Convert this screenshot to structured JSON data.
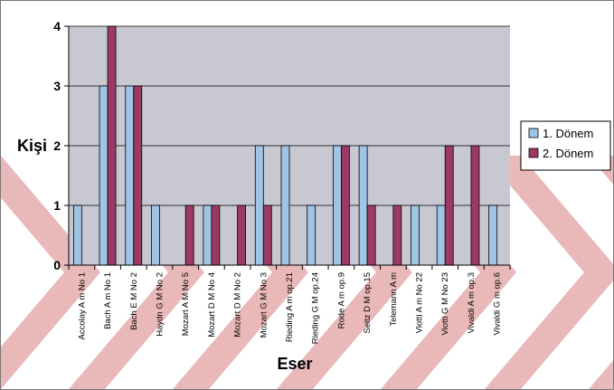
{
  "chart_data": {
    "type": "bar",
    "title": "",
    "xlabel": "Eser",
    "ylabel": "Kişi",
    "ylim": [
      0,
      4
    ],
    "yticks": [
      "0",
      "1",
      "2",
      "3",
      "4"
    ],
    "grid": true,
    "legend_position": "right",
    "categories": [
      "Accolay A m No 1",
      "Bach A m No 1",
      "Bach E M No 2",
      "Haydn G M No 2",
      "Mozart A M No 5",
      "Mozart D M No 4",
      "Mozart D M No 2",
      "Mozart G M No 3",
      "Rieding A m op.21",
      "Rieding G M op.24",
      "Rode A m op.9",
      "Seitz D M op.15",
      "Telemann A m",
      "Viotti A m No 22",
      "Viotti G M No 23",
      "Vivaldi A m op.3",
      "Vivaldi G m op.6"
    ],
    "series": [
      {
        "name": "1. Dönem",
        "color": "#a0c4e4",
        "values": [
          1,
          3,
          3,
          1,
          0,
          1,
          0,
          2,
          2,
          1,
          2,
          2,
          0,
          1,
          1,
          0,
          1
        ]
      },
      {
        "name": "2. Dönem",
        "color": "#9b3a66",
        "values": [
          0,
          4,
          3,
          0,
          1,
          1,
          1,
          1,
          0,
          0,
          2,
          1,
          1,
          0,
          2,
          2,
          0
        ]
      }
    ]
  },
  "colors": {
    "plot_background": "#c8c8d2",
    "watermark": "#e9b8b8"
  }
}
